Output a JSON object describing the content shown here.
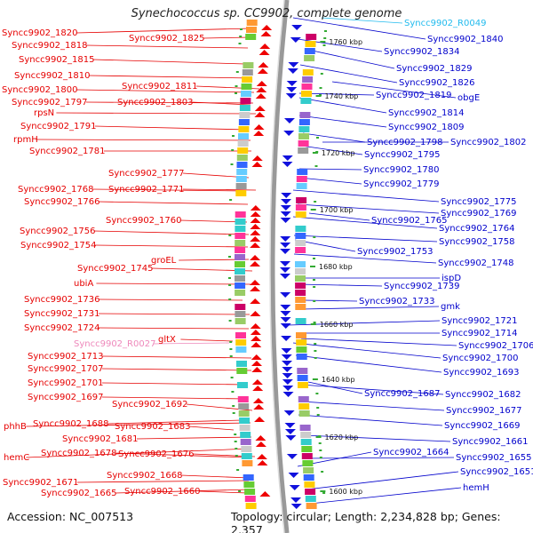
{
  "title": "Synechococcus sp. CC9902, complete genome",
  "footer": {
    "accession": "Accession: NC_007513",
    "topology": "Topology: circular; Length: 2,234,828 bp; Genes: 2,357"
  },
  "colors": {
    "left_label": "#e60000",
    "right_label": "#0000cc",
    "rna_right": "#22bbee",
    "rna_left": "#ee88bb",
    "backbone": "#999999"
  },
  "kbp_labels": [
    "1760 kbp",
    "1740 kbp",
    "1720 kbp",
    "1700 kbp",
    "1680 kbp",
    "1660 kbp",
    "1640 kbp",
    "1620 kbp",
    "1600 kbp"
  ],
  "left_labels": [
    "Syncc9902_1820",
    "Syncc9902_1825",
    "Syncc9902_1818",
    "Syncc9902_1815",
    "Syncc9902_1810",
    "Syncc9902_1811",
    "Syncc9902_1800",
    "Syncc9902_1797",
    "Syncc9902_1803",
    "rpsN",
    "Syncc9902_1791",
    "rpmH",
    "Syncc9902_1781",
    "Syncc9902_1777",
    "Syncc9902_1768",
    "Syncc9902_1771",
    "Syncc9902_1766",
    "Syncc9902_1760",
    "Syncc9902_1756",
    "Syncc9902_1754",
    "groEL",
    "Syncc9902_1745",
    "ubiA",
    "Syncc9902_1736",
    "Syncc9902_1731",
    "Syncc9902_1724",
    "Syncc9902_R0027",
    "gltX",
    "Syncc9902_1713",
    "Syncc9902_1707",
    "Syncc9902_1701",
    "Syncc9902_1697",
    "Syncc9902_1692",
    "phhB",
    "Syncc9902_1688",
    "Syncc9902_1683",
    "Syncc9902_1681",
    "hemC",
    "Syncc9902_1678",
    "Syncc9902_1676",
    "Syncc9902_1668",
    "Syncc9902_1671",
    "Syncc9902_1665",
    "Syncc9902_1660"
  ],
  "right_labels": [
    "Syncc9902_R0049",
    "Syncc9902_1840",
    "Syncc9902_1834",
    "Syncc9902_1829",
    "Syncc9902_1826",
    "Syncc9902_1819",
    "obgE",
    "Syncc9902_1814",
    "Syncc9902_1809",
    "Syncc9902_1798",
    "Syncc9902_1802",
    "Syncc9902_1795",
    "Syncc9902_1780",
    "Syncc9902_1779",
    "Syncc9902_1775",
    "Syncc9902_1769",
    "Syncc9902_1765",
    "Syncc9902_1764",
    "Syncc9902_1758",
    "Syncc9902_1753",
    "Syncc9902_1748",
    "ispD",
    "Syncc9902_1739",
    "Syncc9902_1733",
    "gmk",
    "Syncc9902_1721",
    "Syncc9902_1714",
    "Syncc9902_1706",
    "Syncc9902_1700",
    "Syncc9902_1693",
    "Syncc9902_1687",
    "Syncc9902_1682",
    "Syncc9902_1677",
    "Syncc9902_1669",
    "Syncc9902_1661",
    "Syncc9902_1664",
    "Syncc9902_1655",
    "Syncc9902_1651",
    "hemH"
  ]
}
